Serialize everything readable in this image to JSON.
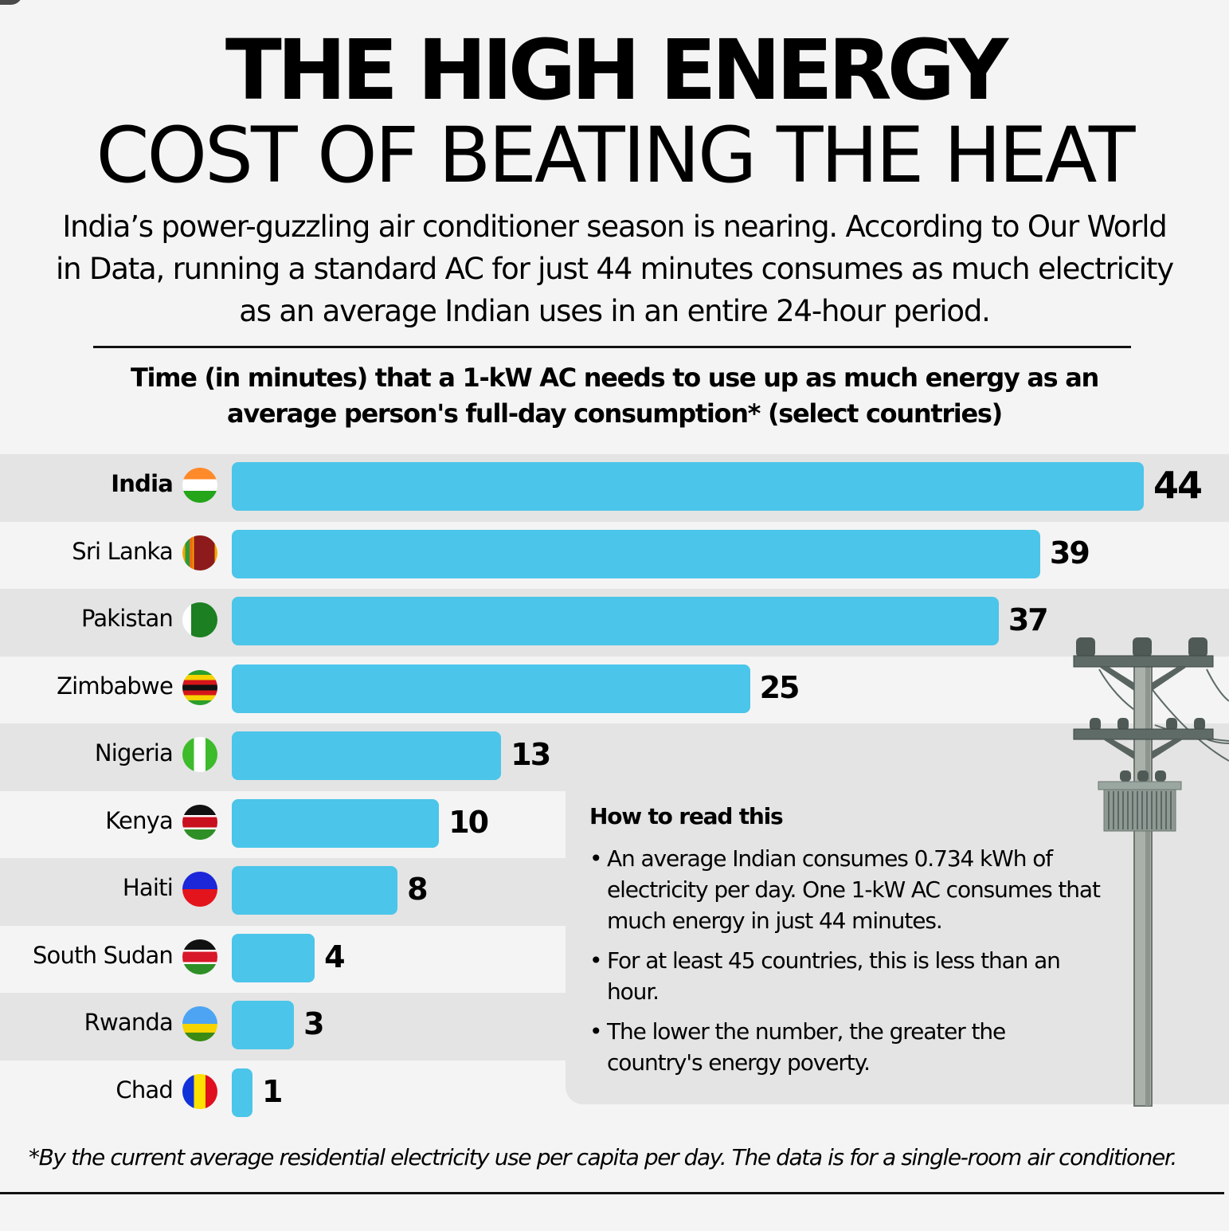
{
  "header": {
    "title_line1": "THE HIGH ENERGY",
    "title_line2": "COST OF BEATING THE HEAT",
    "intro": "India’s power-guzzling air conditioner season is nearing. According to Our World in Data, running a standard AC for just 44 minutes consumes as much electricity as an average Indian uses in an entire 24-hour period."
  },
  "colors": {
    "bar": "#4bc5e9",
    "stripe_dark": "#e4e4e4",
    "background": "#f4f4f4"
  },
  "chart_data": {
    "type": "bar",
    "orientation": "horizontal",
    "title": "Time (in minutes) that a 1-kW AC needs to use up as much energy as an average person's full-day consumption* (select countries)",
    "xlabel": "",
    "ylabel": "",
    "unit": "minutes",
    "grid": false,
    "xlim": [
      0,
      44
    ],
    "categories": [
      "India",
      "Sri Lanka",
      "Pakistan",
      "Zimbabwe",
      "Nigeria",
      "Kenya",
      "Haiti",
      "South Sudan",
      "Rwanda",
      "Chad"
    ],
    "values": [
      44,
      39,
      37,
      25,
      13,
      10,
      8,
      4,
      3,
      1
    ],
    "flags": [
      "india-flag",
      "sri-lanka-flag",
      "pakistan-flag",
      "zimbabwe-flag",
      "nigeria-flag",
      "kenya-flag",
      "haiti-flag",
      "south-sudan-flag",
      "rwanda-flag",
      "chad-flag"
    ],
    "highlighted": "India"
  },
  "info": {
    "title": "How to read this",
    "bullets": [
      "An average Indian consumes 0.734 kWh of electricity per day. One 1-kW AC consumes that much energy in just 44 minutes.",
      "For at least 45 countries, this is less than an hour.",
      "The lower the number, the greater the country's energy poverty."
    ]
  },
  "footnote": "*By the current average residential electricity use per capita per day. The data is for a single-room air conditioner.",
  "illustration": "utility-pole-icon"
}
